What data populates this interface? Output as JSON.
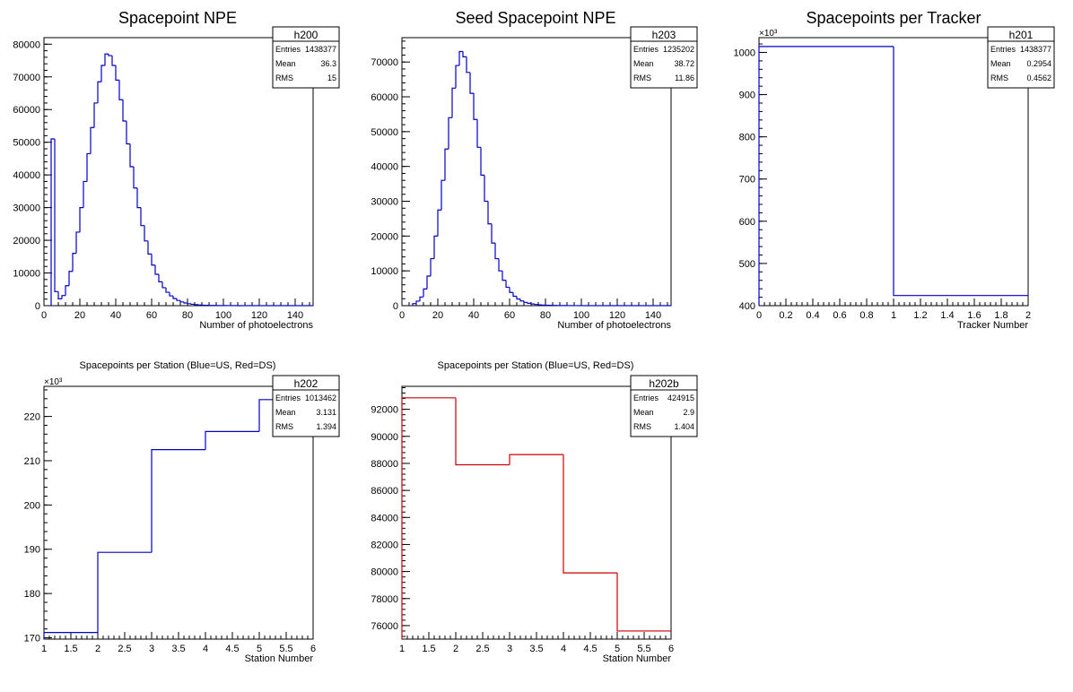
{
  "chart_data": [
    {
      "type": "bar",
      "title": "Spacepoint NPE",
      "xlabel": "Number of photoelectrons",
      "ylabel": "",
      "xlim": [
        0,
        150
      ],
      "ylim": [
        0,
        82000
      ],
      "xticks": [
        0,
        20,
        40,
        60,
        80,
        100,
        120,
        140
      ],
      "yticks": [
        0,
        10000,
        20000,
        30000,
        40000,
        50000,
        60000,
        70000,
        80000
      ],
      "ytick_labels": [
        "0",
        "10000",
        "20000",
        "30000",
        "40000",
        "50000",
        "60000",
        "70000",
        "80000"
      ],
      "color": "#0000cc",
      "stats": {
        "name": "h200",
        "rows": [
          [
            "Entries",
            "1438377"
          ],
          [
            "Mean",
            "36.3"
          ],
          [
            "RMS",
            "15"
          ]
        ]
      },
      "bin_width": 2,
      "x_start": 4,
      "values": [
        51000,
        4300,
        2100,
        3100,
        6100,
        10500,
        16000,
        22500,
        30000,
        38000,
        46500,
        54500,
        62000,
        68500,
        73500,
        77000,
        76500,
        73500,
        69000,
        63000,
        56500,
        49500,
        42500,
        36000,
        30000,
        24500,
        19800,
        15800,
        12400,
        9600,
        7300,
        5500,
        4100,
        3000,
        2200,
        1600,
        1150,
        820,
        600,
        430,
        310,
        220,
        160,
        120,
        90,
        70,
        50,
        40,
        30,
        20,
        20,
        20,
        10,
        10,
        10,
        10,
        10,
        10,
        10,
        10,
        10,
        10,
        10,
        10,
        10,
        10,
        10,
        10,
        10,
        10,
        10,
        10,
        10
      ]
    },
    {
      "type": "bar",
      "title": "Seed Spacepoint NPE",
      "xlabel": "Number of photoelectrons",
      "ylabel": "",
      "xlim": [
        0,
        150
      ],
      "ylim": [
        0,
        77000
      ],
      "xticks": [
        0,
        20,
        40,
        60,
        80,
        100,
        120,
        140
      ],
      "yticks": [
        0,
        10000,
        20000,
        30000,
        40000,
        50000,
        60000,
        70000
      ],
      "ytick_labels": [
        "0",
        "10000",
        "20000",
        "30000",
        "40000",
        "50000",
        "60000",
        "70000"
      ],
      "color": "#0000cc",
      "stats": {
        "name": "h203",
        "rows": [
          [
            "Entries",
            "1235202"
          ],
          [
            "Mean",
            "38.72"
          ],
          [
            "RMS",
            "11.86"
          ]
        ]
      },
      "bin_width": 2,
      "x_start": 6,
      "values": [
        600,
        1300,
        2500,
        4800,
        8500,
        13500,
        20000,
        27500,
        36000,
        45000,
        54000,
        62500,
        69000,
        73000,
        71500,
        67000,
        61000,
        53500,
        45500,
        37500,
        30000,
        23500,
        18000,
        13500,
        10000,
        7300,
        5300,
        3800,
        2700,
        1900,
        1350,
        950,
        680,
        480,
        340,
        240,
        170,
        120,
        90,
        70,
        50,
        40,
        30,
        20,
        20,
        10,
        10,
        10,
        10,
        10,
        10,
        10,
        10,
        10,
        10,
        10,
        10,
        10,
        10,
        10,
        10,
        10,
        10,
        10,
        10,
        10,
        10,
        10,
        10,
        10,
        10,
        10
      ]
    },
    {
      "type": "bar",
      "title": "Spacepoints per Tracker",
      "xlabel": "Tracker Number",
      "ylabel": "",
      "xlim": [
        0,
        2
      ],
      "ylim": [
        400,
        1035
      ],
      "xticks": [
        0,
        0.2,
        0.4,
        0.6,
        0.8,
        1,
        1.2,
        1.4,
        1.6,
        1.8,
        2
      ],
      "yticks": [
        400,
        500,
        600,
        700,
        800,
        900,
        1000
      ],
      "ytick_labels": [
        "400",
        "500",
        "600",
        "700",
        "800",
        "900",
        "1000"
      ],
      "exponent": "×10³",
      "color": "#0000cc",
      "stats": {
        "name": "h201",
        "rows": [
          [
            "Entries",
            "1438377"
          ],
          [
            "Mean",
            "0.2954"
          ],
          [
            "RMS",
            "0.4562"
          ]
        ]
      },
      "bin_width": 1,
      "x_start": 0,
      "values": [
        1014,
        424
      ]
    },
    {
      "type": "bar",
      "title": "Spacepoints per Station (Blue=US, Red=DS)",
      "xlabel": "Station Number",
      "ylabel": "",
      "xlim": [
        1,
        6
      ],
      "ylim": [
        169.7,
        226.8
      ],
      "xticks": [
        1,
        1.5,
        2,
        2.5,
        3,
        3.5,
        4,
        4.5,
        5,
        5.5,
        6
      ],
      "yticks": [
        170,
        180,
        190,
        200,
        210,
        220
      ],
      "ytick_labels": [
        "170",
        "180",
        "190",
        "200",
        "210",
        "220"
      ],
      "exponent": "×10³",
      "color": "#0000cc",
      "stats": {
        "name": "h202",
        "rows": [
          [
            "Entries",
            "1013462"
          ],
          [
            "Mean",
            "3.131"
          ],
          [
            "RMS",
            "1.394"
          ]
        ]
      },
      "bin_width": 1,
      "x_start": 1,
      "values": [
        171.2,
        189.3,
        212.5,
        216.6,
        223.8
      ]
    },
    {
      "type": "bar",
      "title": "Spacepoints per Station (Blue=US, Red=DS)",
      "xlabel": "Station Number",
      "ylabel": "",
      "xlim": [
        1,
        6
      ],
      "ylim": [
        75000,
        93700
      ],
      "xticks": [
        1,
        1.5,
        2,
        2.5,
        3,
        3.5,
        4,
        4.5,
        5,
        5.5,
        6
      ],
      "yticks": [
        76000,
        78000,
        80000,
        82000,
        84000,
        86000,
        88000,
        90000,
        92000
      ],
      "ytick_labels": [
        "76000",
        "78000",
        "80000",
        "82000",
        "84000",
        "86000",
        "88000",
        "90000",
        "92000"
      ],
      "color": "#cc0000",
      "stats": {
        "name": "h202b",
        "rows": [
          [
            "Entries",
            "424915"
          ],
          [
            "Mean",
            "2.9"
          ],
          [
            "RMS",
            "1.404"
          ]
        ]
      },
      "bin_width": 1,
      "x_start": 1,
      "values": [
        92850,
        87900,
        88650,
        79900,
        75600
      ]
    }
  ]
}
